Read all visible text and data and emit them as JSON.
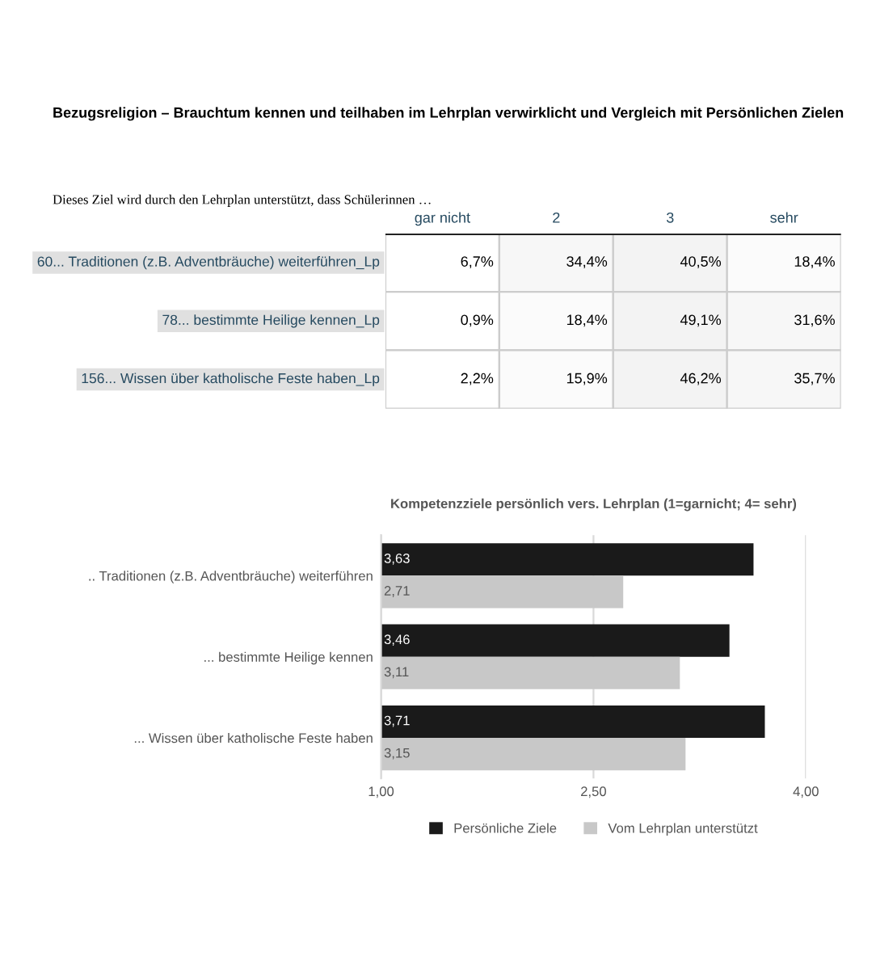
{
  "chart_data": [
    {
      "type": "heatmap",
      "title": "Bezugsreligion – Brauchtum kennen und teilhaben im Lehrplan verwirklicht und Vergleich mit Persönlichen Zielen",
      "subtitle": "Dieses Ziel wird durch den Lehrplan unterstützt, dass Schülerinnen …",
      "categories": [
        "gar nicht",
        "2",
        "3",
        "sehr"
      ],
      "y_categories": [
        "60... Traditionen (z.B. Adventbräuche) weiterführen_Lp",
        "78... bestimmte Heilige kennen_Lp",
        "156... Wissen über katholische Feste haben_Lp"
      ],
      "cells": [
        [
          6.7,
          34.4,
          40.5,
          18.4
        ],
        [
          0.9,
          18.4,
          49.1,
          31.6
        ],
        [
          2.2,
          15.9,
          46.2,
          35.7
        ]
      ],
      "cell_labels": [
        [
          "6,7%",
          "34,4%",
          "40,5%",
          "18,4%"
        ],
        [
          "0,9%",
          "18,4%",
          "49,1%",
          "31,6%"
        ],
        [
          "2,2%",
          "15,9%",
          "46,2%",
          "35,7%"
        ]
      ]
    },
    {
      "type": "bar",
      "orientation": "horizontal",
      "title": "Kompetenzziele persönlich vers. Lehrplan (1=garnicht; 4= sehr)",
      "categories": [
        ".. Traditionen (z.B. Adventbräuche) weiterführen",
        "... bestimmte Heilige kennen",
        "... Wissen über katholische Feste haben"
      ],
      "series": [
        {
          "name": "Persönliche Ziele",
          "color": "#1a1a1a",
          "values": [
            3.63,
            3.46,
            3.71
          ],
          "value_labels": [
            "3,63",
            "3,46",
            "3,71"
          ]
        },
        {
          "name": "Vom Lehrplan unterstützt",
          "color": "#c8c8c8",
          "values": [
            2.71,
            3.11,
            3.15
          ],
          "value_labels": [
            "2,71",
            "3,11",
            "3,15"
          ]
        }
      ],
      "xlim": [
        1,
        4
      ],
      "xticks": [
        {
          "value": 1,
          "label": "1,00"
        },
        {
          "value": 2.5,
          "label": "2,50"
        },
        {
          "value": 4,
          "label": "4,00"
        }
      ],
      "grid": "x",
      "legend": "bottom"
    }
  ]
}
